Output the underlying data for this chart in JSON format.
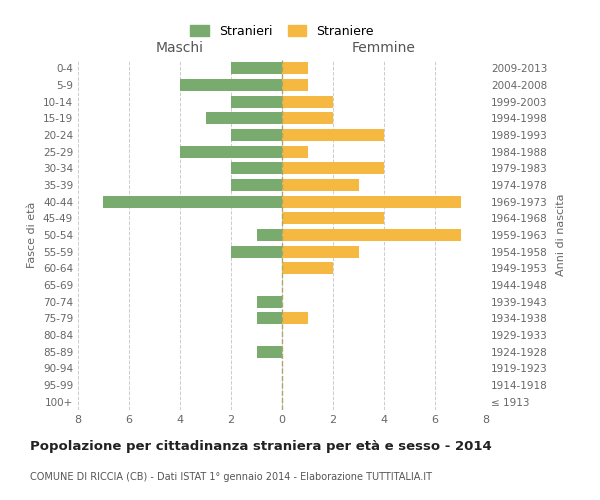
{
  "age_groups": [
    "100+",
    "95-99",
    "90-94",
    "85-89",
    "80-84",
    "75-79",
    "70-74",
    "65-69",
    "60-64",
    "55-59",
    "50-54",
    "45-49",
    "40-44",
    "35-39",
    "30-34",
    "25-29",
    "20-24",
    "15-19",
    "10-14",
    "5-9",
    "0-4"
  ],
  "birth_years": [
    "≤ 1913",
    "1914-1918",
    "1919-1923",
    "1924-1928",
    "1929-1933",
    "1934-1938",
    "1939-1943",
    "1944-1948",
    "1949-1953",
    "1954-1958",
    "1959-1963",
    "1964-1968",
    "1969-1973",
    "1974-1978",
    "1979-1983",
    "1984-1988",
    "1989-1993",
    "1994-1998",
    "1999-2003",
    "2004-2008",
    "2009-2013"
  ],
  "males": [
    0,
    0,
    0,
    1,
    0,
    1,
    1,
    0,
    0,
    2,
    1,
    0,
    7,
    2,
    2,
    4,
    2,
    3,
    2,
    4,
    2
  ],
  "females": [
    0,
    0,
    0,
    0,
    0,
    1,
    0,
    0,
    2,
    3,
    7,
    4,
    7,
    3,
    4,
    1,
    4,
    2,
    2,
    1,
    1
  ],
  "male_color": "#7aab6e",
  "female_color": "#f5b942",
  "background_color": "#ffffff",
  "grid_color": "#cccccc",
  "title": "Popolazione per cittadinanza straniera per età e sesso - 2014",
  "subtitle": "COMUNE DI RICCIA (CB) - Dati ISTAT 1° gennaio 2014 - Elaborazione TUTTITALIA.IT",
  "ylabel_left": "Fasce di età",
  "ylabel_right": "Anni di nascita",
  "xlim": 8,
  "legend_stranieri": "Stranieri",
  "legend_straniere": "Straniere",
  "maschi_label": "Maschi",
  "femmine_label": "Femmine"
}
